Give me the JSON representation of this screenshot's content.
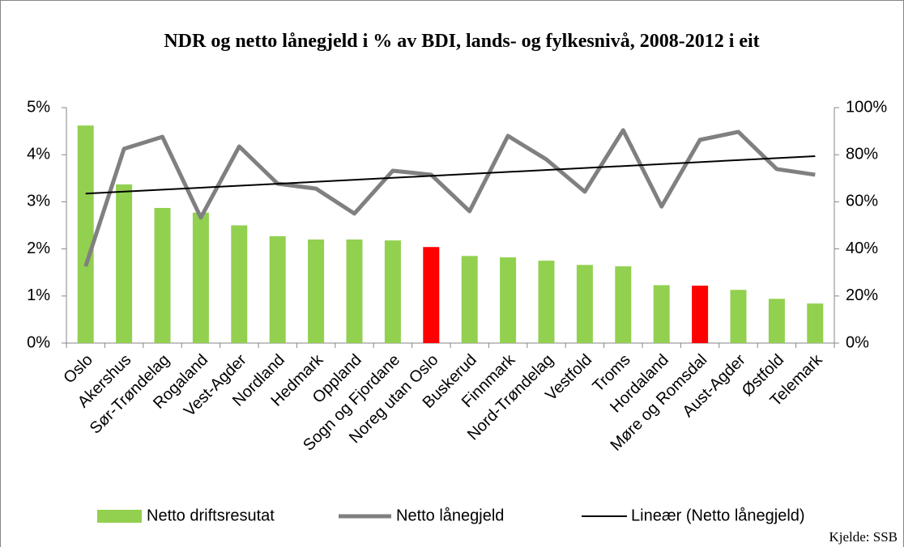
{
  "chart_data": {
    "type": "bar-line",
    "title": "NDR og netto lånegjeld i % av BDI, lands- og fylkesnivå, 2008-2012 i eit",
    "source": "Kjelde: SSB",
    "categories": [
      "Oslo",
      "Akershus",
      "Sør-Trøndelag",
      "Rogaland",
      "Vest-Agder",
      "Nordland",
      "Hedmark",
      "Oppland",
      "Sogn og Fjordane",
      "Noreg utan Oslo",
      "Buskerud",
      "Finnmark",
      "Nord-Trøndelag",
      "Vestfold",
      "Troms",
      "Hordaland",
      "Møre og Romsdal",
      "Aust-Agder",
      "Østfold",
      "Telemark"
    ],
    "series": [
      {
        "name": "Netto driftsresutat",
        "type": "bar",
        "color": "#92d050",
        "colors": [
          "#92d050",
          "#92d050",
          "#92d050",
          "#92d050",
          "#92d050",
          "#92d050",
          "#92d050",
          "#92d050",
          "#92d050",
          "#ff0000",
          "#92d050",
          "#92d050",
          "#92d050",
          "#92d050",
          "#92d050",
          "#92d050",
          "#ff0000",
          "#92d050",
          "#92d050",
          "#92d050"
        ],
        "values": [
          4.62,
          3.37,
          2.87,
          2.77,
          2.5,
          2.27,
          2.2,
          2.2,
          2.18,
          2.04,
          1.85,
          1.82,
          1.75,
          1.66,
          1.63,
          1.23,
          1.22,
          1.13,
          0.94,
          0.84
        ]
      },
      {
        "name": "Netto lånegjeld",
        "type": "line",
        "axis": "y2",
        "color": "#808080",
        "values": [
          32.6,
          82.5,
          87.6,
          53.3,
          83.5,
          67.7,
          65.6,
          55,
          73.2,
          71.5,
          56,
          88,
          78,
          64.3,
          90.4,
          58,
          86.3,
          89.7,
          73.9,
          71.5
        ]
      }
    ],
    "trendline": {
      "name": "Lineær (Netto lånegjeld)",
      "color": "#000000"
    },
    "ylim": [
      0,
      5
    ],
    "yticks": [
      {
        "value": 0,
        "label": "0%"
      },
      {
        "value": 1,
        "label": "1%"
      },
      {
        "value": 2,
        "label": "2%"
      },
      {
        "value": 3,
        "label": "3%"
      },
      {
        "value": 4,
        "label": "4%"
      },
      {
        "value": 5,
        "label": "5%"
      }
    ],
    "y2lim": [
      0,
      100
    ],
    "y2ticks": [
      {
        "value": 0,
        "label": "0%"
      },
      {
        "value": 20,
        "label": "20%"
      },
      {
        "value": 40,
        "label": "40%"
      },
      {
        "value": 60,
        "label": "60%"
      },
      {
        "value": 80,
        "label": "80%"
      },
      {
        "value": 100,
        "label": "100%"
      }
    ],
    "grid": false,
    "legend": "bottom"
  }
}
